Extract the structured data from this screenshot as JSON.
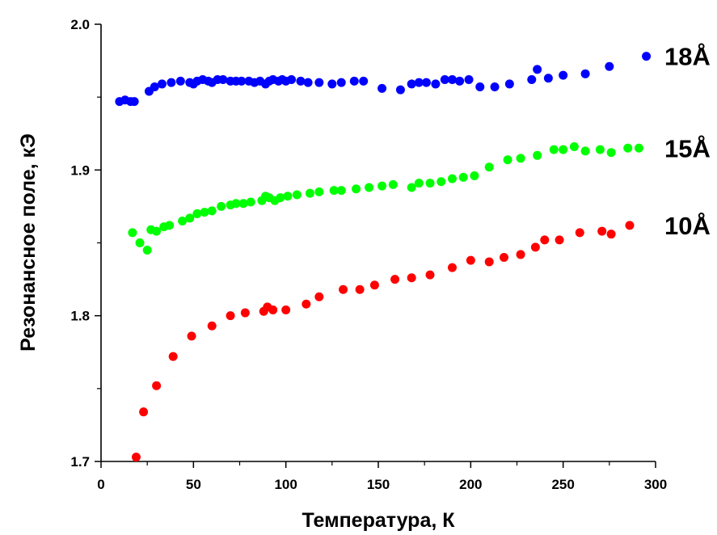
{
  "chart_data": {
    "type": "scatter",
    "xlabel": "Температура, К",
    "ylabel": "Резонансное поле, кЭ",
    "xlim": [
      0,
      300
    ],
    "ylim": [
      1.7,
      2.0
    ],
    "xticks": [
      "0",
      "50",
      "100",
      "150",
      "200",
      "250",
      "300"
    ],
    "yticks": [
      "1.7",
      "1.8",
      "1.9",
      "2.0"
    ],
    "grid": false,
    "series": [
      {
        "name": "18Å",
        "color": "#0000ff",
        "x": [
          10,
          13,
          16,
          18,
          26,
          29,
          33,
          38,
          43,
          48,
          50,
          52,
          55,
          58,
          60,
          63,
          66,
          70,
          73,
          76,
          80,
          83,
          86,
          89,
          91,
          93,
          96,
          98,
          100,
          103,
          108,
          112,
          118,
          125,
          130,
          137,
          142,
          152,
          162,
          168,
          172,
          176,
          181,
          186,
          190,
          194,
          199,
          205,
          213,
          221,
          233,
          236,
          242,
          250,
          262,
          275,
          295
        ],
        "y": [
          1.947,
          1.948,
          1.947,
          1.947,
          1.954,
          1.957,
          1.959,
          1.96,
          1.961,
          1.96,
          1.959,
          1.961,
          1.962,
          1.961,
          1.96,
          1.962,
          1.962,
          1.961,
          1.961,
          1.961,
          1.961,
          1.96,
          1.961,
          1.959,
          1.961,
          1.962,
          1.961,
          1.962,
          1.961,
          1.962,
          1.961,
          1.96,
          1.96,
          1.959,
          1.96,
          1.961,
          1.961,
          1.956,
          1.955,
          1.959,
          1.96,
          1.96,
          1.959,
          1.962,
          1.962,
          1.961,
          1.962,
          1.957,
          1.957,
          1.959,
          1.962,
          1.969,
          1.963,
          1.965,
          1.966,
          1.971,
          1.978
        ]
      },
      {
        "name": "15Å",
        "color": "#00ff00",
        "x": [
          17,
          21,
          25,
          27,
          30,
          34,
          37,
          44,
          48,
          52,
          56,
          60,
          65,
          70,
          73,
          77,
          81,
          87,
          89,
          91,
          94,
          97,
          101,
          106,
          113,
          118,
          126,
          130,
          138,
          145,
          152,
          158,
          168,
          172,
          178,
          184,
          190,
          196,
          202,
          210,
          220,
          227,
          236,
          245,
          250,
          256,
          262,
          270,
          276,
          285,
          291
        ],
        "y": [
          1.857,
          1.85,
          1.845,
          1.859,
          1.858,
          1.861,
          1.862,
          1.865,
          1.867,
          1.87,
          1.871,
          1.872,
          1.875,
          1.876,
          1.877,
          1.877,
          1.878,
          1.879,
          1.882,
          1.881,
          1.879,
          1.881,
          1.882,
          1.883,
          1.884,
          1.885,
          1.886,
          1.886,
          1.887,
          1.888,
          1.889,
          1.89,
          1.888,
          1.891,
          1.891,
          1.892,
          1.894,
          1.895,
          1.896,
          1.902,
          1.907,
          1.908,
          1.91,
          1.914,
          1.914,
          1.916,
          1.913,
          1.914,
          1.912,
          1.915,
          1.915
        ]
      },
      {
        "name": "10Å",
        "color": "#ff0000",
        "x": [
          19,
          23,
          30,
          39,
          49,
          60,
          70,
          78,
          88,
          90,
          93,
          100,
          111,
          118,
          131,
          140,
          148,
          159,
          168,
          178,
          190,
          200,
          210,
          218,
          227,
          235,
          240,
          248,
          259,
          271,
          276,
          286
        ],
        "y": [
          1.703,
          1.734,
          1.752,
          1.772,
          1.786,
          1.793,
          1.8,
          1.802,
          1.803,
          1.806,
          1.804,
          1.804,
          1.808,
          1.813,
          1.818,
          1.818,
          1.821,
          1.825,
          1.826,
          1.828,
          1.833,
          1.838,
          1.837,
          1.84,
          1.842,
          1.847,
          1.852,
          1.852,
          1.857,
          1.858,
          1.856,
          1.862
        ]
      }
    ]
  }
}
